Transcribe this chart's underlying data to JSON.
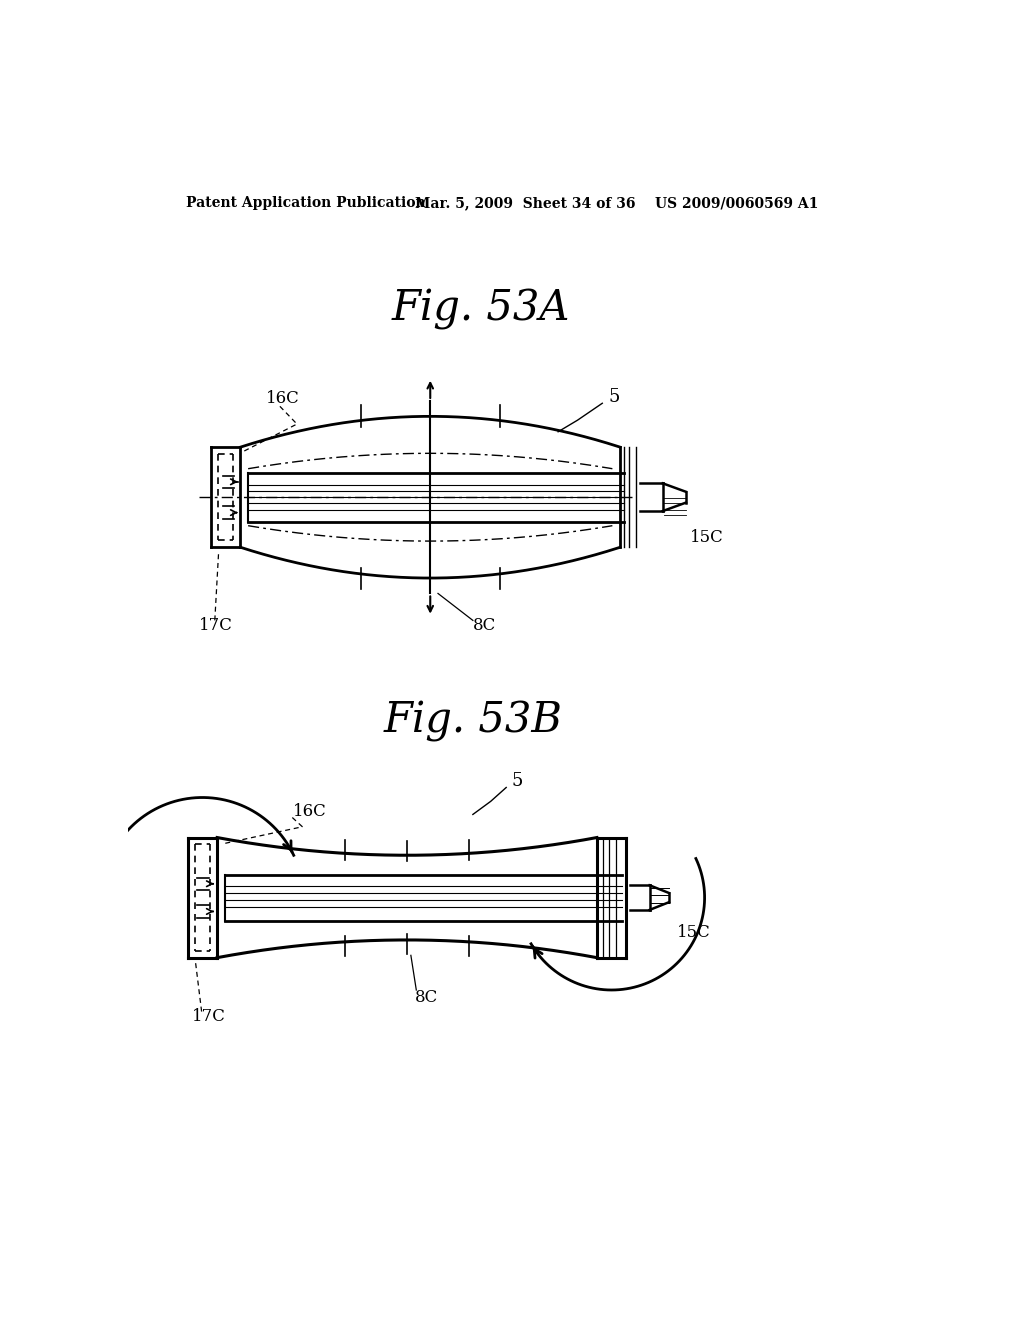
{
  "bg_color": "#ffffff",
  "text_color": "#000000",
  "header_left": "Patent Application Publication",
  "header_mid": "Mar. 5, 2009  Sheet 34 of 36",
  "header_right": "US 2009/0060569 A1",
  "fig_title_A": "Fig. 53A",
  "fig_title_B": "Fig. 53B",
  "label_5_A": "5",
  "label_16C_A": "16C",
  "label_15C_A": "15C",
  "label_17C_A": "17C",
  "label_8C_A": "8C",
  "label_5_B": "5",
  "label_16C_B": "16C",
  "label_15C_B": "15C",
  "label_17C_B": "17C",
  "label_8C_B": "8C"
}
